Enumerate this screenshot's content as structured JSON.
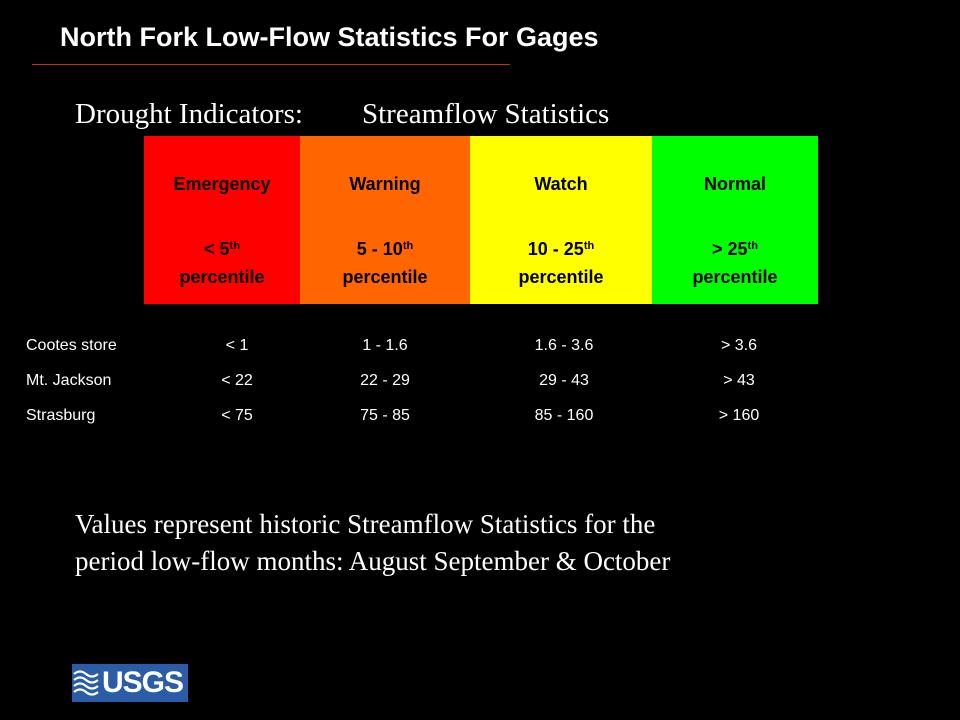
{
  "title": "North Fork Low-Flow Statistics For Gages",
  "subtitle": {
    "left": "Drought Indicators:",
    "right": "Streamflow Statistics"
  },
  "categories": [
    {
      "label": "Emergency",
      "pct_prefix": "< 5",
      "pct_sup": "th",
      "pct_word": "percentile",
      "color": "#ff0000",
      "text_color": "#000000"
    },
    {
      "label": "Warning",
      "pct_prefix": "5 - 10",
      "pct_sup": "th",
      "pct_word": "percentile",
      "color": "#ff6600",
      "text_color": "#000000"
    },
    {
      "label": "Watch",
      "pct_prefix": "10 - 25",
      "pct_sup": "th",
      "pct_word": "percentile",
      "color": "#ffff00",
      "text_color": "#000000"
    },
    {
      "label": "Normal",
      "pct_prefix": "> 25",
      "pct_sup": "th",
      "pct_word": "percentile",
      "color": "#00ff00",
      "text_color": "#000000"
    }
  ],
  "gages": [
    {
      "name": "Cootes store",
      "values": [
        "< 1",
        "1 - 1.6",
        "1.6 - 3.6",
        "> 3.6"
      ]
    },
    {
      "name": "Mt. Jackson",
      "values": [
        "< 22",
        "22 - 29",
        "29 - 43",
        "> 43"
      ]
    },
    {
      "name": "Strasburg",
      "values": [
        "< 75",
        "75 - 85",
        "85 - 160",
        "> 160"
      ]
    }
  ],
  "note": {
    "line1": "Values represent historic Streamflow Statistics for the",
    "line2": "period low-flow months: August September & October"
  },
  "logo": {
    "text": "USGS",
    "icon": "usgs-wave-icon"
  }
}
